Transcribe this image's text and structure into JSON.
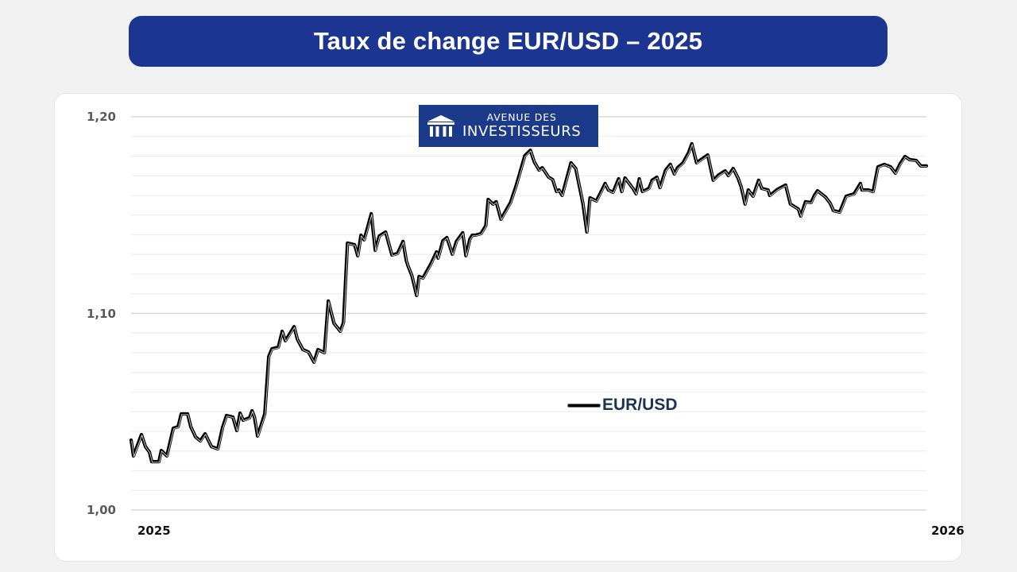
{
  "header": {
    "title": "Taux de change EUR/USD – 2025",
    "background_color": "#1c3591"
  },
  "logo": {
    "line1": "AVENUE DES",
    "line2": "INVESTISSEURS",
    "icon": "bank-columns-icon",
    "background_color": "#1c3a8a"
  },
  "axes": {
    "y_ticks": [
      "1,20",
      "1,10",
      "1,00"
    ],
    "x_ticks": [
      "2025",
      "2026"
    ]
  },
  "legend": {
    "label": "EUR/USD",
    "color": "#000000"
  },
  "chart_data": {
    "type": "line",
    "title": "Taux de change EUR/USD – 2025",
    "xlabel": "",
    "ylabel": "",
    "x_tick_labels": [
      "2025",
      "2026"
    ],
    "y_tick_labels": [
      "1,00",
      "1,10",
      "1,20"
    ],
    "ylim": [
      1.0,
      1.2
    ],
    "xlim": [
      0,
      1
    ],
    "grid": true,
    "grid_step": 0.02,
    "legend_position": "center-right, inside plot",
    "series": [
      {
        "name": "EUR/USD",
        "color": "#000000",
        "x": [
          0.0,
          0.003,
          0.013,
          0.018,
          0.023,
          0.026,
          0.035,
          0.038,
          0.042,
          0.045,
          0.053,
          0.059,
          0.063,
          0.071,
          0.075,
          0.081,
          0.087,
          0.093,
          0.101,
          0.109,
          0.115,
          0.12,
          0.128,
          0.133,
          0.137,
          0.141,
          0.149,
          0.152,
          0.155,
          0.159,
          0.168,
          0.173,
          0.177,
          0.185,
          0.19,
          0.194,
          0.205,
          0.209,
          0.216,
          0.223,
          0.23,
          0.235,
          0.243,
          0.248,
          0.255,
          0.263,
          0.267,
          0.272,
          0.281,
          0.285,
          0.289,
          0.293,
          0.302,
          0.307,
          0.312,
          0.32,
          0.328,
          0.335,
          0.342,
          0.346,
          0.348,
          0.353,
          0.359,
          0.362,
          0.367,
          0.377,
          0.384,
          0.386,
          0.392,
          0.397,
          0.404,
          0.409,
          0.417,
          0.421,
          0.426,
          0.429,
          0.433,
          0.44,
          0.446,
          0.449,
          0.455,
          0.459,
          0.465,
          0.477,
          0.484,
          0.495,
          0.502,
          0.507,
          0.513,
          0.517,
          0.525,
          0.53,
          0.535,
          0.538,
          0.542,
          0.553,
          0.559,
          0.568,
          0.573,
          0.577,
          0.585,
          0.592,
          0.596,
          0.6,
          0.606,
          0.613,
          0.617,
          0.621,
          0.631,
          0.635,
          0.639,
          0.643,
          0.647,
          0.651,
          0.655,
          0.661,
          0.665,
          0.672,
          0.678,
          0.683,
          0.687,
          0.694,
          0.701,
          0.705,
          0.711,
          0.725,
          0.732,
          0.739,
          0.747,
          0.751,
          0.757,
          0.763,
          0.767,
          0.772,
          0.776,
          0.782,
          0.789,
          0.793,
          0.801,
          0.803,
          0.813,
          0.823,
          0.829,
          0.839,
          0.842,
          0.848,
          0.855,
          0.859,
          0.863,
          0.873,
          0.879,
          0.883,
          0.891,
          0.899,
          0.909,
          0.917,
          0.919,
          0.927,
          0.933,
          0.939,
          0.947,
          0.955,
          0.961,
          0.967,
          0.973,
          0.979,
          0.987,
          0.993,
          1.0
        ],
        "values": [
          1.0356,
          1.0275,
          1.0384,
          1.0323,
          1.0295,
          1.0246,
          1.0246,
          1.0303,
          1.0287,
          1.0275,
          1.0416,
          1.0424,
          1.0489,
          1.0489,
          1.0424,
          1.0372,
          1.0352,
          1.0388,
          1.0323,
          1.0311,
          1.042,
          1.0481,
          1.0473,
          1.0404,
          1.0493,
          1.0457,
          1.0469,
          1.0505,
          1.0473,
          1.0376,
          1.0489,
          1.078,
          1.082,
          1.0828,
          1.0909,
          1.0861,
          1.0933,
          1.0869,
          1.0816,
          1.0804,
          1.0752,
          1.0816,
          1.08,
          1.1063,
          1.095,
          1.0909,
          1.0954,
          1.1358,
          1.1349,
          1.1293,
          1.1398,
          1.1374,
          1.1507,
          1.1321,
          1.1394,
          1.1414,
          1.1297,
          1.1305,
          1.1366,
          1.1269,
          1.1244,
          1.1192,
          1.1091,
          1.1188,
          1.118,
          1.1253,
          1.1313,
          1.1281,
          1.137,
          1.1386,
          1.1301,
          1.1366,
          1.141,
          1.1293,
          1.1378,
          1.1398,
          1.1398,
          1.1406,
          1.1446,
          1.158,
          1.1556,
          1.1568,
          1.1479,
          1.1564,
          1.1648,
          1.1802,
          1.183,
          1.177,
          1.1729,
          1.1741,
          1.1693,
          1.1681,
          1.162,
          1.1628,
          1.16,
          1.1766,
          1.1737,
          1.156,
          1.1414,
          1.1588,
          1.1572,
          1.1628,
          1.1661,
          1.1628,
          1.1616,
          1.1685,
          1.162,
          1.1689,
          1.1636,
          1.1608,
          1.1685,
          1.162,
          1.1628,
          1.1636,
          1.1677,
          1.1693,
          1.164,
          1.1729,
          1.1758,
          1.1709,
          1.1741,
          1.1766,
          1.1818,
          1.1863,
          1.1766,
          1.1806,
          1.1677,
          1.1705,
          1.1725,
          1.1701,
          1.1737,
          1.1689,
          1.1644,
          1.1556,
          1.1628,
          1.1596,
          1.1677,
          1.1636,
          1.1628,
          1.16,
          1.1632,
          1.1653,
          1.1556,
          1.1531,
          1.1495,
          1.1568,
          1.1564,
          1.16,
          1.1624,
          1.1592,
          1.156,
          1.1523,
          1.1515,
          1.1596,
          1.1608,
          1.1661,
          1.1628,
          1.1628,
          1.162,
          1.1745,
          1.1758,
          1.1745,
          1.1713,
          1.1762,
          1.1798,
          1.1782,
          1.1778,
          1.175,
          1.175
        ]
      }
    ]
  }
}
